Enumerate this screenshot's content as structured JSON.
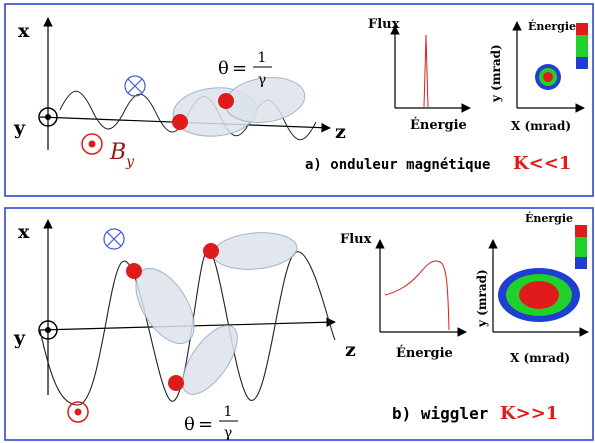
{
  "colors": {
    "frame": "#1f3fd1",
    "red": "#e01b1b",
    "ellipse_fill": "#dde3ea",
    "ellipse_stroke": "#8ea8c8",
    "green": "#1fd12a",
    "blue": "#1f3fd1",
    "field_blue": "#3d5bd8",
    "arrow": "#000000"
  },
  "panel_a": {
    "axis_x": "x",
    "axis_y": "y",
    "axis_z": "z",
    "field_label": "B",
    "field_sub": "y",
    "theta_lhs": "θ",
    "theta_eq": "=",
    "theta_num": "1",
    "theta_den": "γ",
    "flux_label": "Flux",
    "energy_label": "Énergie",
    "energy_map_label": "Énergie",
    "xmrad_label": "X (mrad)",
    "ymrad_label": "y (mrad)",
    "caption": "a) onduleur magnétique",
    "k_label": "K<<1"
  },
  "panel_b": {
    "axis_x": "x",
    "axis_y": "y",
    "axis_z": "z",
    "theta_lhs": "θ",
    "theta_eq": "=",
    "theta_num": "1",
    "theta_den": "γ",
    "flux_label": "Flux",
    "energy_label": "Énergie",
    "energy_map_label": "Énergie",
    "xmrad_label": "X (mrad)",
    "ymrad_label": "y (mrad)",
    "caption": "b) wiggler",
    "k_label": "K>>1"
  }
}
